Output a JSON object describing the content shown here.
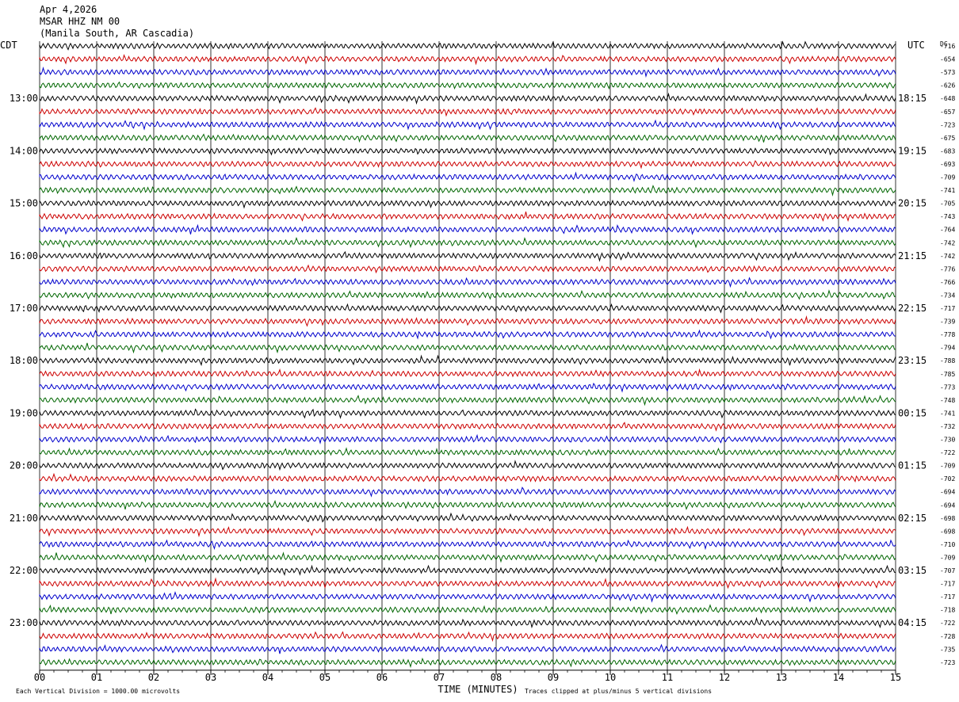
{
  "header": {
    "date": "Apr 4,2026",
    "station": "MSAR HHZ NM 00",
    "location": "(Manila South, AR Cascadia)"
  },
  "chart_data": {
    "type": "line",
    "title": "",
    "left_label": "CDT",
    "right_label": "UTC",
    "dc_label": "DC",
    "xlabel": "TIME (MINUTES)",
    "xlim": [
      0,
      15
    ],
    "x_ticks": [
      "00",
      "01",
      "02",
      "03",
      "04",
      "05",
      "06",
      "07",
      "08",
      "09",
      "10",
      "11",
      "12",
      "13",
      "14",
      "15"
    ],
    "left_times": [
      "13:00",
      "14:00",
      "15:00",
      "16:00",
      "17:00",
      "18:00",
      "19:00",
      "20:00",
      "21:00",
      "22:00",
      "23:00"
    ],
    "right_times": [
      "18:15",
      "19:15",
      "20:15",
      "21:15",
      "22:15",
      "23:15",
      "00:15",
      "01:15",
      "02:15",
      "03:15",
      "04:15"
    ],
    "trace_colors": [
      "#000000",
      "#cc0000",
      "#0000cc",
      "#006600"
    ],
    "dc_offsets": [
      -716,
      -654,
      -573,
      -626,
      -648,
      -657,
      -723,
      -675,
      -683,
      -693,
      -709,
      -741,
      -705,
      -743,
      -764,
      -742,
      -742,
      -776,
      -766,
      -734,
      -717,
      -739,
      -778,
      -794,
      -788,
      -785,
      -773,
      -748,
      -741,
      -732,
      -730,
      -722,
      -709,
      -702,
      -694,
      -694,
      -698,
      -698,
      -710,
      -709,
      -707,
      -717,
      -717,
      -718,
      -722,
      -728,
      -735,
      -723
    ],
    "footer_left": "Each Vertical Division = 1000.00 microvolts",
    "footer_right": "Traces clipped at plus/minus 5 vertical divisions"
  }
}
